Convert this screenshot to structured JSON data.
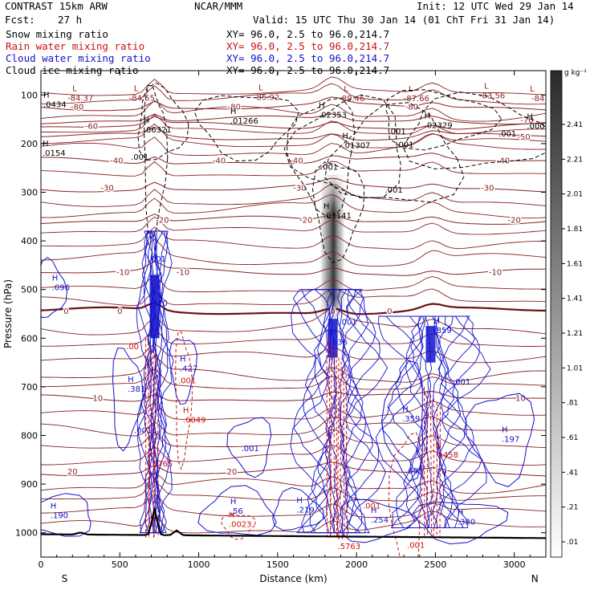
{
  "header": {
    "title": "CONTRAST 15km ARW",
    "center": "NCAR/MMM",
    "init": "Init: 12 UTC Wed 29 Jan 14",
    "fcst_label": "Fcst:",
    "fcst_value": "27 h",
    "valid": "Valid: 15 UTC Thu 30 Jan 14 (01 ChT Fri 31 Jan 14)"
  },
  "legend": [
    {
      "name": "Snow mixing ratio",
      "color": "#000000",
      "xy": "XY=  96.0,  2.5 to  96.0,214.7"
    },
    {
      "name": "Rain water mixing ratio",
      "color": "#cc1111",
      "xy": "XY=  96.0,  2.5 to  96.0,214.7"
    },
    {
      "name": "Cloud water mixing ratio",
      "color": "#1111cc",
      "xy": "XY=  96.0,  2.5 to  96.0,214.7"
    },
    {
      "name": "Cloud ice mixing ratio",
      "color": "#000000",
      "xy": "XY=  96.0,  2.5 to  96.0,214.7"
    }
  ],
  "chart_data": {
    "type": "cross-section contour",
    "xlabel": "Distance (km)",
    "ylabel": "Pressure (hPa)",
    "xlim": [
      0,
      3200
    ],
    "ylim": [
      1050,
      50
    ],
    "x_ticks": [
      0,
      500,
      1000,
      1500,
      2000,
      2500,
      3000
    ],
    "x_tick_labels": [
      "0",
      "500",
      "1000",
      "1500",
      "2000",
      "2500",
      "3000"
    ],
    "y_ticks": [
      100,
      200,
      300,
      400,
      500,
      600,
      700,
      800,
      900,
      1000
    ],
    "y_tick_labels": [
      "100",
      "200",
      "300",
      "400",
      "500",
      "600",
      "700",
      "800",
      "900",
      "1000"
    ],
    "end_labels": {
      "left": "S",
      "right": "N"
    },
    "colorbar": {
      "unit": "g kg⁻¹",
      "labels": [
        "2.41",
        "2.21",
        "2.01",
        "1.81",
        "1.61",
        "1.41",
        "1.21",
        "1.01",
        ".81",
        ".61",
        ".41",
        ".21",
        ".01"
      ],
      "values": [
        2.41,
        2.21,
        2.01,
        1.81,
        1.61,
        1.41,
        1.21,
        1.01,
        0.81,
        0.61,
        0.41,
        0.21,
        0.01
      ]
    },
    "temperature_isotherms": [
      {
        "label": "-80",
        "p": 125,
        "labels_x": [
          230,
          1225,
          2350
        ]
      },
      {
        "label": "-70",
        "p": 152,
        "labels_x": [
          3080
        ]
      },
      {
        "label": "-60",
        "p": 165,
        "labels_x": [
          320
        ]
      },
      {
        "label": "-50",
        "p": 187,
        "labels_x": [
          3060
        ]
      },
      {
        "label": "-40",
        "p": 236,
        "labels_x": [
          480,
          1130,
          1620,
          2930
        ]
      },
      {
        "label": "-30",
        "p": 292,
        "labels_x": [
          420,
          1640,
          2830
        ]
      },
      {
        "label": "-20",
        "p": 358,
        "labels_x": [
          770,
          1680,
          3000
        ]
      },
      {
        "label": "-10",
        "p": 465,
        "labels_x": [
          520,
          900,
          2880
        ]
      },
      {
        "label": "0",
        "p": 545,
        "labels_x": [
          160,
          500,
          1850,
          2210
        ]
      },
      {
        "label": "10",
        "p": 724,
        "labels_x": [
          360,
          3040
        ]
      },
      {
        "label": "20",
        "p": 875,
        "labels_x": [
          200,
          1210,
          2540
        ]
      }
    ],
    "temperature_point_labels": [
      {
        "text": "-84.37",
        "x": 250,
        "p": 105
      },
      {
        "text": "-84.55",
        "x": 640,
        "p": 105
      },
      {
        "text": "-85.92",
        "x": 1430,
        "p": 104
      },
      {
        "text": "-89.46",
        "x": 1970,
        "p": 106
      },
      {
        "text": "-87.66",
        "x": 2380,
        "p": 106
      },
      {
        "text": "-83.56",
        "x": 2860,
        "p": 100
      },
      {
        "text": "-84",
        "x": 3150,
        "p": 106
      }
    ],
    "ice_maxima": [
      {
        "text": ".0434",
        "x": 15,
        "p": 122
      },
      {
        "text": ".01266",
        "x": 1200,
        "p": 156
      },
      {
        "text": ".02353",
        "x": 1760,
        "p": 143
      },
      {
        "text": ".06321",
        "x": 650,
        "p": 174
      },
      {
        "text": ".01307",
        "x": 1910,
        "p": 206
      },
      {
        "text": ".02329",
        "x": 2430,
        "p": 165
      },
      {
        "text": ".0002",
        "x": 3080,
        "p": 166
      },
      {
        "text": ".0154",
        "x": 10,
        "p": 222
      },
      {
        "text": ".03141",
        "x": 1790,
        "p": 350
      }
    ],
    "ice_contour_labels": [
      {
        "text": ".001",
        "x": 570,
        "p": 233
      },
      {
        "text": ".001",
        "x": 1770,
        "p": 254
      },
      {
        "text": ".001",
        "x": 2200,
        "p": 180
      },
      {
        "text": ".001",
        "x": 2250,
        "p": 208
      },
      {
        "text": ".001",
        "x": 2900,
        "p": 185
      },
      {
        "text": ".001",
        "x": 2180,
        "p": 301
      }
    ],
    "cloud_water_maxima": [
      {
        "text": ".096",
        "x": 70,
        "p": 498
      },
      {
        "text": ".710",
        "x": 690,
        "p": 530
      },
      {
        "text": ".381",
        "x": 550,
        "p": 707
      },
      {
        "text": ".427",
        "x": 880,
        "p": 665
      },
      {
        "text": ".636",
        "x": 1830,
        "p": 610
      },
      {
        "text": ".359",
        "x": 2290,
        "p": 768
      },
      {
        "text": ".859",
        "x": 2490,
        "p": 586
      },
      {
        "text": ".197",
        "x": 2920,
        "p": 810
      },
      {
        "text": ".190",
        "x": 60,
        "p": 967
      },
      {
        "text": ".56",
        "x": 1200,
        "p": 958
      },
      {
        "text": ".219",
        "x": 1620,
        "p": 955
      },
      {
        "text": ".254",
        "x": 2090,
        "p": 976
      },
      {
        "text": ".380",
        "x": 2640,
        "p": 980
      }
    ],
    "cloud_water_contour_labels": [
      {
        "text": ".001",
        "x": 680,
        "p": 443
      },
      {
        "text": ".001",
        "x": 1890,
        "p": 572
      },
      {
        "text": ".001",
        "x": 2610,
        "p": 695
      },
      {
        "text": ".001",
        "x": 590,
        "p": 795
      },
      {
        "text": ".001",
        "x": 1270,
        "p": 832
      },
      {
        "text": ".001",
        "x": 2310,
        "p": 878
      }
    ],
    "rain_maxima": [
      {
        "text": ".0049",
        "x": 900,
        "p": 770
      },
      {
        "text": ".5765",
        "x": 690,
        "p": 860
      },
      {
        "text": ".1458",
        "x": 2500,
        "p": 842
      },
      {
        "text": ".0023",
        "x": 1190,
        "p": 985
      },
      {
        "text": ".5763",
        "x": 1880,
        "p": 1030
      }
    ],
    "rain_contour_labels": [
      {
        "text": ".00",
        "x": 540,
        "p": 623
      },
      {
        "text": ".001",
        "x": 870,
        "p": 693
      },
      {
        "text": ".001",
        "x": 2040,
        "p": 950
      },
      {
        "text": ".001",
        "x": 2320,
        "p": 1031
      }
    ],
    "melting_level": "0",
    "terrain_peak_km": 720
  }
}
